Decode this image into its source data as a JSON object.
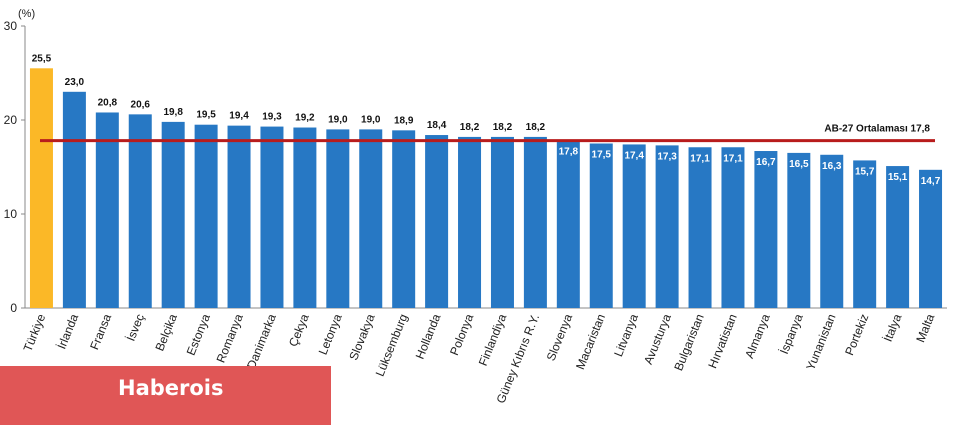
{
  "chart_data": {
    "type": "bar",
    "unit_label": "(%)",
    "categories": [
      "Türkiye",
      "İrlanda",
      "Fransa",
      "İsveç",
      "Belçika",
      "Estonya",
      "Romanya",
      "Danimarka",
      "Çekya",
      "Letonya",
      "Slovakya",
      "Lüksemburg",
      "Hollanda",
      "Polonya",
      "Finlandiya",
      "Güney Kıbrıs R.Y.",
      "Slovenya",
      "Macaristan",
      "Litvanya",
      "Avusturya",
      "Bulgaristan",
      "Hırvatistan",
      "Almanya",
      "İspanya",
      "Yunanistan",
      "Portekiz",
      "İtalya",
      "Malta"
    ],
    "values": [
      25.5,
      23.0,
      20.8,
      20.6,
      19.8,
      19.5,
      19.4,
      19.3,
      19.2,
      19.0,
      19.0,
      18.9,
      18.4,
      18.2,
      18.2,
      18.2,
      17.8,
      17.5,
      17.4,
      17.3,
      17.1,
      17.1,
      16.7,
      16.5,
      16.3,
      15.7,
      15.1,
      14.7
    ],
    "value_labels": [
      "25,5",
      "23,0",
      "20,8",
      "20,6",
      "19,8",
      "19,5",
      "19,4",
      "19,3",
      "19,2",
      "19,0",
      "19,0",
      "18,9",
      "18,4",
      "18,2",
      "18,2",
      "18,2",
      "17,8",
      "17,5",
      "17,4",
      "17,3",
      "17,1",
      "17,1",
      "16,7",
      "16,5",
      "16,3",
      "15,7",
      "15,1",
      "14,7"
    ],
    "label_inside_from_index": 16,
    "ylim": [
      0,
      30
    ],
    "yticks": [
      0,
      10,
      20,
      30
    ],
    "grid": false,
    "reference_line": {
      "value": 17.8,
      "label": "AB-27 Ortalaması  17,8",
      "color": "#b81c1c"
    },
    "colors": {
      "highlight": "#fbb827",
      "default": "#2778c4",
      "axis": "#888888"
    },
    "highlight_index": 0
  },
  "watermark": {
    "text": "Haberois",
    "color": "#e05656"
  }
}
